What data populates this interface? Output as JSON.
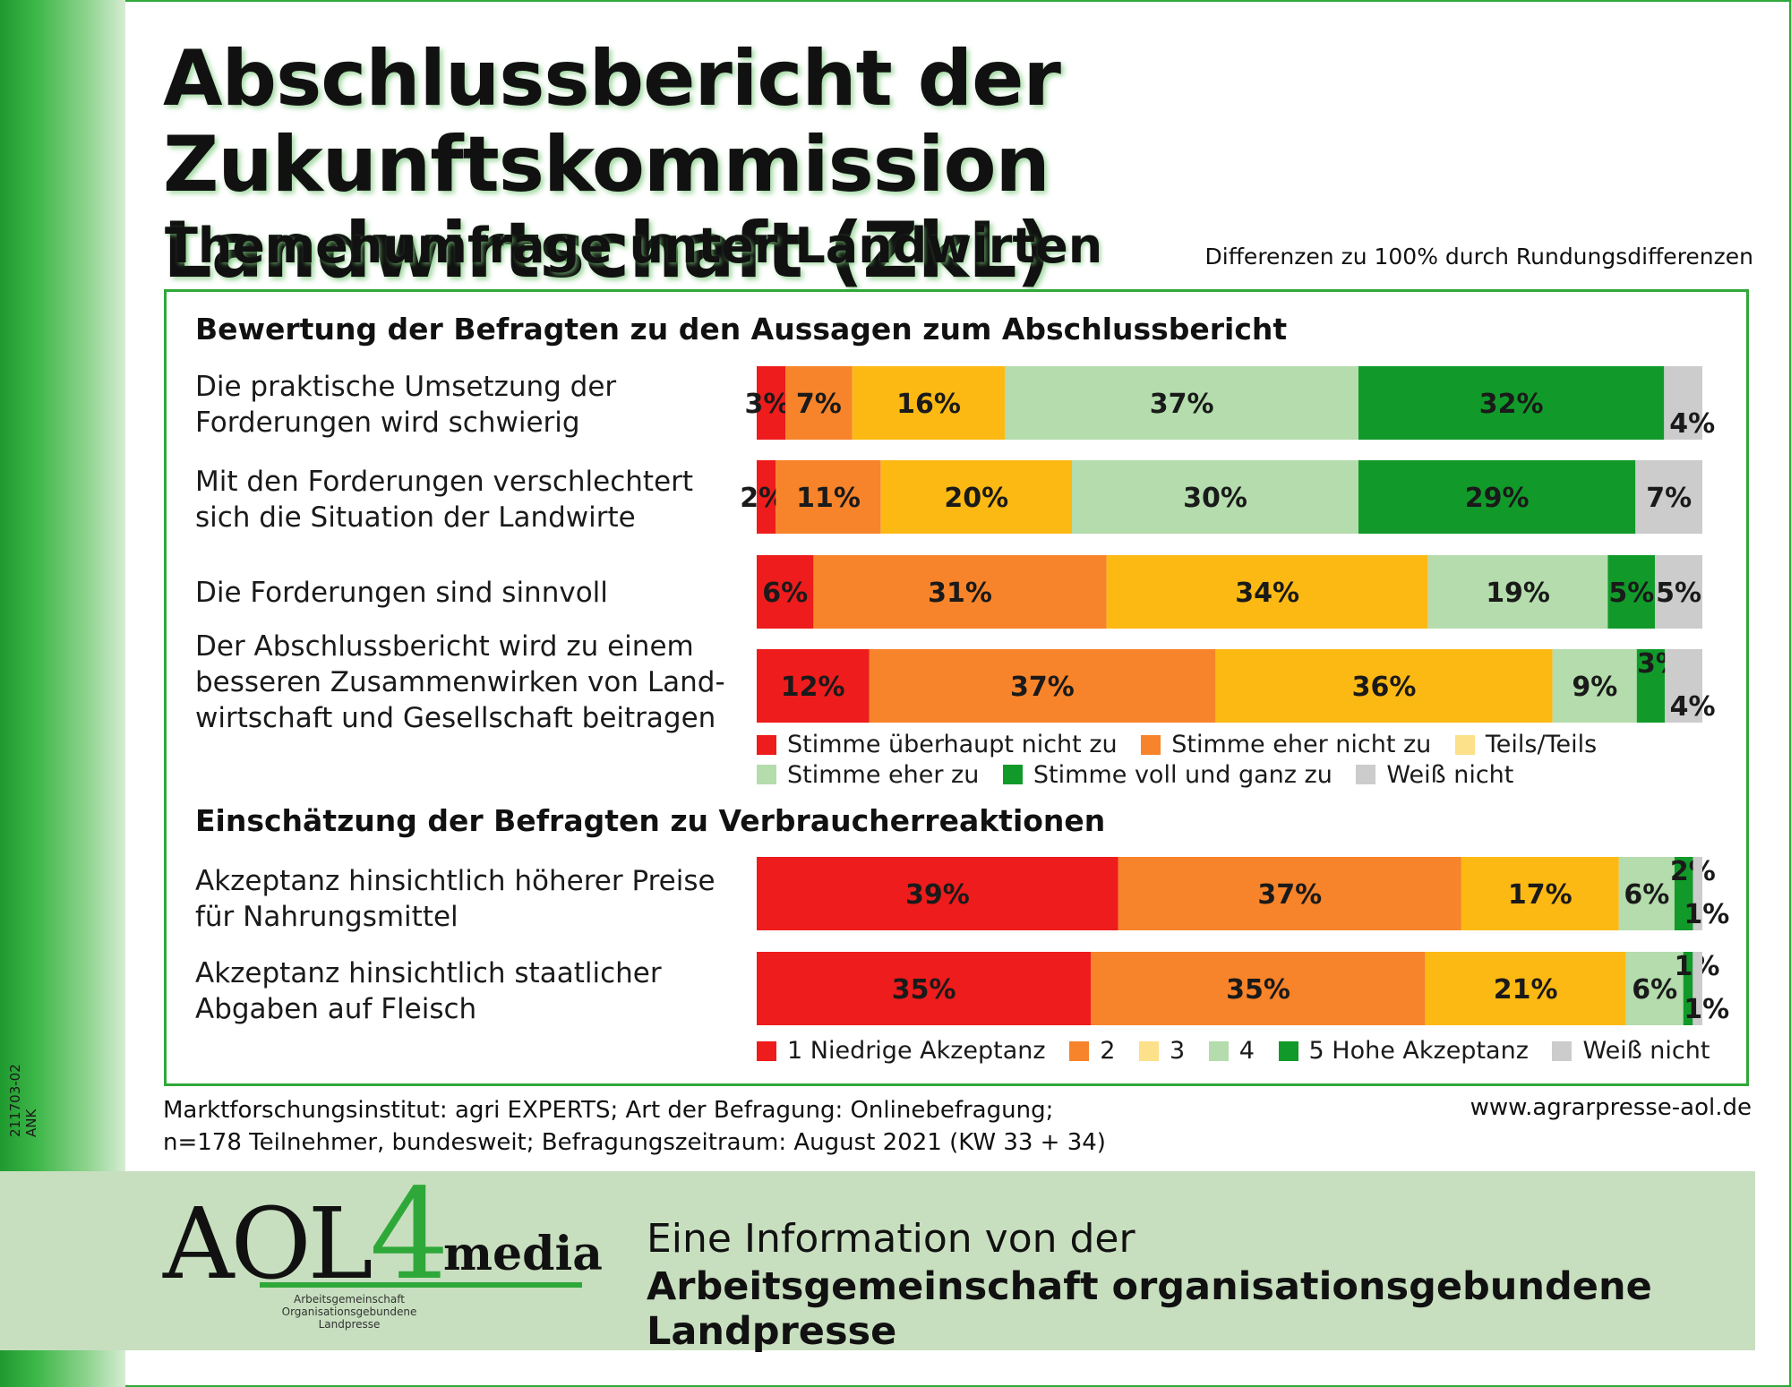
{
  "header": {
    "title_line1": "Abschlussbericht der Zukunftskommission",
    "title_line2": "Landwirtschaft (ZkL)",
    "subtitle": "Themenumfrage unter Landwirten",
    "note": "Differenzen zu 100% durch Rundungsdifferenzen"
  },
  "side_code": "211703-02 ANK",
  "colors": {
    "red": "#ee1c1c",
    "orange": "#f7842a",
    "yellow": "#fdb913",
    "lightgreen": "#b4dcac",
    "darkgreen": "#119a2a",
    "gray": "#cccccc",
    "frame": "#2fa83a"
  },
  "chart_data": [
    {
      "type": "bar",
      "orientation": "horizontal-stacked",
      "title": "Bewertung der Befragten zu den Aussagen zum Abschlussbericht",
      "categories": [
        "Die praktische Umsetzung der Forderungen wird schwierig",
        "Mit den Forderungen verschlechtert sich die Situation der Landwirte",
        "Die Forderungen sind sinnvoll",
        "Der Abschlussbericht wird zu einem besseren Zusammenwirken von Landwirtschaft und Gesellschaft beitragen"
      ],
      "series": [
        {
          "name": "Stimme überhaupt nicht zu",
          "values": [
            3,
            2,
            6,
            12
          ]
        },
        {
          "name": "Stimme eher nicht zu",
          "values": [
            7,
            11,
            31,
            37
          ]
        },
        {
          "name": "Teils/Teils",
          "values": [
            16,
            20,
            34,
            36
          ]
        },
        {
          "name": "Stimme eher zu",
          "values": [
            37,
            30,
            19,
            9
          ]
        },
        {
          "name": "Stimme voll und ganz zu",
          "values": [
            32,
            29,
            5,
            3
          ]
        },
        {
          "name": "Weiß nicht",
          "values": [
            4,
            7,
            5,
            4
          ]
        }
      ],
      "unit": "%"
    },
    {
      "type": "bar",
      "orientation": "horizontal-stacked",
      "title": "Einschätzung der Befragten zu Verbraucherreaktionen",
      "categories": [
        "Akzeptanz hinsichtlich höherer Preise für Nahrungsmittel",
        "Akzeptanz hinsichtlich staatlicher Abgaben auf Fleisch"
      ],
      "series": [
        {
          "name": "1 Niedrige Akzeptanz",
          "values": [
            39,
            35
          ]
        },
        {
          "name": "2",
          "values": [
            37,
            35
          ]
        },
        {
          "name": "3",
          "values": [
            17,
            21
          ]
        },
        {
          "name": "4",
          "values": [
            6,
            6
          ]
        },
        {
          "name": "5 Hohe Akzeptanz",
          "values": [
            2,
            1
          ]
        },
        {
          "name": "Weiß nicht",
          "values": [
            1,
            1
          ]
        }
      ],
      "unit": "%"
    }
  ],
  "row_labels": {
    "s1": [
      [
        "Die praktische Umsetzung der",
        "Forderungen wird schwierig"
      ],
      [
        "Mit den Forderungen verschlechtert",
        "sich die Situation der Landwirte"
      ],
      [
        "Die Forderungen sind sinnvoll"
      ],
      [
        "Der Abschlussbericht wird zu einem",
        "besseren Zusammenwirken von Land-",
        "wirtschaft und Gesellschaft beitragen"
      ]
    ],
    "s2": [
      [
        "Akzeptanz hinsichtlich höherer Preise",
        "für Nahrungsmittel"
      ],
      [
        "Akzeptanz hinsichtlich staatlicher",
        "Abgaben auf Fleisch"
      ]
    ]
  },
  "legend1": {
    "row1": [
      "Stimme überhaupt nicht zu",
      "Stimme eher nicht zu",
      "Teils/Teils"
    ],
    "row2": [
      "Stimme eher zu",
      "Stimme voll und ganz zu",
      "Weiß nicht"
    ]
  },
  "legend2": [
    "1 Niedrige Akzeptanz",
    "2",
    "3",
    "4",
    "5 Hohe Akzeptanz",
    "Weiß nicht"
  ],
  "source": {
    "line1": "Marktforschungsinstitut: agri EXPERTS; Art der Befragung: Onlinebefragung;",
    "line2": "n=178 Teilnehmer, bundesweit; Befragungszeitraum: August 2021 (KW 33 + 34)"
  },
  "website": "www.agrarpresse-aol.de",
  "footer": {
    "logo_main": "AOL",
    "logo_four": "4",
    "logo_media": "media",
    "logo_sub1": "Arbeitsgemeinschaft",
    "logo_sub2": "Organisationsgebundene",
    "logo_sub3": "Landpresse",
    "line1": "Eine Information von der",
    "line2": "Arbeitsgemeinschaft organisationsgebundene Landpresse"
  }
}
